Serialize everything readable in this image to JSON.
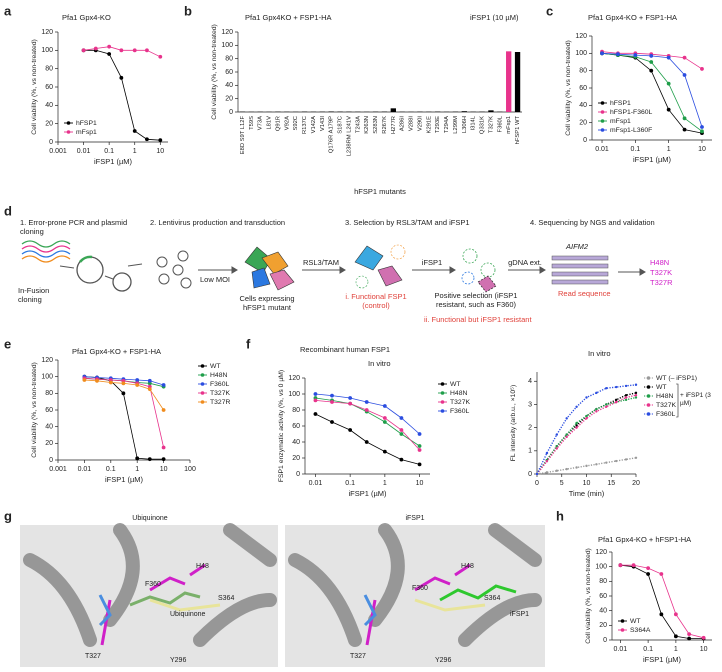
{
  "chart_data": [
    {
      "panel": "a",
      "type": "line",
      "title": "Pfa1 Gpx4-KO",
      "xlabel": "iFSP1 (µM)",
      "ylabel": "Cell viability (%, vs non-treated)",
      "xscale": "log",
      "x": [
        0.01,
        0.03,
        0.1,
        0.3,
        1,
        3,
        10
      ],
      "xlim": [
        0.001,
        20
      ],
      "xticks": [
        0.001,
        0.01,
        0.1,
        1,
        10
      ],
      "ylim": [
        0,
        120
      ],
      "yticks": [
        0,
        20,
        40,
        60,
        80,
        100,
        120
      ],
      "legend": "lower left",
      "series": [
        {
          "name": "hFSP1",
          "color": "#000000",
          "values": [
            100,
            100,
            96,
            70,
            12,
            3,
            2
          ]
        },
        {
          "name": "mFsp1",
          "color": "#e8338c",
          "values": [
            100,
            102,
            104,
            100,
            100,
            100,
            93
          ]
        }
      ]
    },
    {
      "panel": "b",
      "type": "bar",
      "title": "Pfa1 Gpx4KO + FSP1-HA",
      "subtitle": "iFSP1 (10 µM)",
      "xlabel": "hFSP1 mutants",
      "ylabel": "Cell viability (%, vs non-treated)",
      "categories": [
        "E8D S9T L12F",
        "T59S",
        "V73A",
        "L81V",
        "Q91R",
        "V92A",
        "S92C",
        "R137C",
        "V142A",
        "V143I",
        "Q176R A179P",
        "S187C",
        "L238RM L241V",
        "T243A",
        "K263N",
        "S283N",
        "R267K",
        "H277R",
        "A286I",
        "V288I",
        "V290I",
        "K291E",
        "T293E",
        "T294A",
        "L299M",
        "L306H",
        "I314L",
        "Q331K",
        "T327K",
        "F360L",
        "mFsp1",
        "hFSP1 WT"
      ],
      "values": [
        0.5,
        0.3,
        0.4,
        0.3,
        0.5,
        0.4,
        0.3,
        0.6,
        0.4,
        0.5,
        0.8,
        0.6,
        0.5,
        0.4,
        0.3,
        0.5,
        0.6,
        5.5,
        0.4,
        0.3,
        0.5,
        0.4,
        0.6,
        0.3,
        0.5,
        1.2,
        0.4,
        0.5,
        2.5,
        0.4,
        91,
        90
      ],
      "colors": [
        "#000000",
        "#000000",
        "#000000",
        "#000000",
        "#000000",
        "#000000",
        "#000000",
        "#000000",
        "#000000",
        "#000000",
        "#000000",
        "#000000",
        "#000000",
        "#000000",
        "#000000",
        "#000000",
        "#000000",
        "#000000",
        "#000000",
        "#000000",
        "#000000",
        "#000000",
        "#000000",
        "#000000",
        "#000000",
        "#000000",
        "#000000",
        "#000000",
        "#000000",
        "#000000",
        "#e8338c",
        "#000000"
      ],
      "ylim": [
        0,
        120
      ],
      "yticks": [
        0,
        20,
        40,
        60,
        80,
        100,
        120
      ]
    },
    {
      "panel": "c",
      "type": "line",
      "title": "Pfa1 Gpx4-KO + FSP1-HA",
      "xlabel": "iFSP1 (µM)",
      "ylabel": "Cell viability (%, vs non-treated)",
      "xscale": "log",
      "x": [
        0.01,
        0.03,
        0.1,
        0.3,
        1,
        3,
        10
      ],
      "xlim": [
        0.005,
        20
      ],
      "xticks": [
        0.01,
        0.1,
        1,
        10
      ],
      "ylim": [
        0,
        120
      ],
      "yticks": [
        0,
        20,
        40,
        60,
        80,
        100,
        120
      ],
      "legend": "lower left",
      "series": [
        {
          "name": "hFSP1",
          "color": "#000000",
          "values": [
            100,
            98,
            95,
            80,
            35,
            12,
            8
          ]
        },
        {
          "name": "hFSP1-F360L",
          "color": "#e8338c",
          "values": [
            102,
            100,
            100,
            99,
            97,
            95,
            82
          ]
        },
        {
          "name": "mFsp1",
          "color": "#1f9e4a",
          "values": [
            100,
            98,
            96,
            90,
            65,
            25,
            10
          ]
        },
        {
          "name": "mFsp1-L360F",
          "color": "#2b4de0",
          "values": [
            100,
            99,
            98,
            97,
            95,
            75,
            15
          ]
        }
      ]
    },
    {
      "panel": "e",
      "type": "line",
      "title": "Pfa1 Gpx4-KO + FSP1-HA",
      "xlabel": "iFSP1 (µM)",
      "ylabel": "Cell viability (%, vs non-treated)",
      "xscale": "log",
      "x": [
        0.01,
        0.03,
        0.1,
        0.3,
        1,
        3,
        10
      ],
      "xlim": [
        0.001,
        100
      ],
      "xticks": [
        0.001,
        0.01,
        0.1,
        1,
        10,
        100
      ],
      "ylim": [
        0,
        120
      ],
      "yticks": [
        0,
        20,
        40,
        60,
        80,
        100,
        120
      ],
      "legend": "right",
      "series": [
        {
          "name": "WT",
          "color": "#000000",
          "values": [
            100,
            99,
            95,
            80,
            2,
            1,
            1
          ]
        },
        {
          "name": "H48N",
          "color": "#1f9e4a",
          "values": [
            98,
            97,
            96,
            95,
            93,
            92,
            88
          ]
        },
        {
          "name": "F360L",
          "color": "#2b4de0",
          "values": [
            100,
            99,
            98,
            97,
            96,
            95,
            90
          ]
        },
        {
          "name": "T327K",
          "color": "#e8338c",
          "values": [
            98,
            97,
            96,
            95,
            92,
            88,
            15
          ]
        },
        {
          "name": "T327R",
          "color": "#f08c1e",
          "values": [
            96,
            95,
            93,
            92,
            90,
            85,
            60
          ]
        }
      ]
    },
    {
      "panel": "f",
      "type": "line",
      "title": "Recombinant human FSP1",
      "subtitle": "In vitro",
      "xlabel": "iFSP1 (µM)",
      "ylabel": "FSP1 enzymatic activity (%, vs 0 µM)",
      "xscale": "log",
      "x": [
        0.01,
        0.03,
        0.1,
        0.3,
        1,
        3,
        10
      ],
      "xlim": [
        0.005,
        20
      ],
      "xticks": [
        0.01,
        0.1,
        1,
        10
      ],
      "ylim": [
        0,
        120
      ],
      "yticks": [
        0,
        20,
        40,
        60,
        80,
        100,
        120
      ],
      "legend": "right",
      "series": [
        {
          "name": "WT",
          "color": "#000000",
          "values": [
            75,
            65,
            55,
            40,
            28,
            18,
            12
          ]
        },
        {
          "name": "H48N",
          "color": "#1f9e4a",
          "values": [
            95,
            92,
            88,
            78,
            65,
            50,
            35
          ]
        },
        {
          "name": "T327K",
          "color": "#e8338c",
          "values": [
            92,
            90,
            88,
            80,
            70,
            55,
            30
          ]
        },
        {
          "name": "F360L",
          "color": "#2b4de0",
          "values": [
            100,
            98,
            95,
            90,
            85,
            70,
            50
          ]
        }
      ]
    },
    {
      "type": "line",
      "title": "In vitro",
      "xlabel": "Time (min)",
      "ylabel": "FL intensity (arb.u., ×10⁵)",
      "line_style": "dotted",
      "x": [
        0,
        2,
        4,
        6,
        8,
        10,
        12,
        14,
        16,
        18,
        20
      ],
      "xlim": [
        0,
        20
      ],
      "xticks": [
        0,
        5,
        10,
        15,
        20
      ],
      "ylim": [
        0,
        4.4
      ],
      "yticks": [
        0,
        1,
        2,
        3,
        4
      ],
      "legend": "right",
      "legend_note": "+ iFSP1 (3 µM)",
      "series": [
        {
          "name": "WT (– iFSP1)",
          "color": "#999999",
          "values": [
            0,
            0.07,
            0.14,
            0.21,
            0.28,
            0.35,
            0.42,
            0.49,
            0.56,
            0.63,
            0.7
          ]
        },
        {
          "name": "WT",
          "color": "#000000",
          "values": [
            0,
            0.6,
            1.2,
            1.7,
            2.1,
            2.5,
            2.8,
            3.0,
            3.2,
            3.4,
            3.5
          ]
        },
        {
          "name": "H48N",
          "color": "#1f9e4a",
          "values": [
            0,
            0.6,
            1.2,
            1.7,
            2.2,
            2.5,
            2.8,
            3.0,
            3.1,
            3.2,
            3.3
          ]
        },
        {
          "name": "T327K",
          "color": "#e8338c",
          "values": [
            0,
            0.55,
            1.1,
            1.6,
            2.0,
            2.4,
            2.7,
            2.9,
            3.1,
            3.3,
            3.4
          ]
        },
        {
          "name": "F360L",
          "color": "#2b4de0",
          "values": [
            0,
            0.9,
            1.7,
            2.4,
            2.9,
            3.3,
            3.5,
            3.7,
            3.75,
            3.8,
            3.85
          ]
        }
      ]
    },
    {
      "panel": "h",
      "type": "line",
      "title": "Pfa1 Gpx4-KO + hFSP1-HA",
      "xlabel": "iFSP1 (µM)",
      "ylabel": "Cell viability (%, vs non-treated)",
      "xscale": "log",
      "x": [
        0.01,
        0.03,
        0.1,
        0.3,
        1,
        3,
        10
      ],
      "xlim": [
        0.005,
        20
      ],
      "xticks": [
        0.01,
        0.1,
        1,
        10
      ],
      "ylim": [
        0,
        120
      ],
      "yticks": [
        0,
        20,
        40,
        60,
        80,
        100,
        120
      ],
      "legend": "lower left",
      "series": [
        {
          "name": "WT",
          "color": "#000000",
          "values": [
            102,
            100,
            90,
            35,
            5,
            2,
            2
          ]
        },
        {
          "name": "S364A",
          "color": "#e8338c",
          "values": [
            102,
            102,
            98,
            90,
            35,
            8,
            3
          ]
        }
      ]
    }
  ],
  "diagram": {
    "panel": "d",
    "steps": [
      "1. Error-prone PCR and plasmid cloning",
      "2. Lentivirus production and transduction",
      "3. Selection by RSL3/TAM and iFSP1",
      "4. Sequencing by NGS and validation"
    ],
    "labels": [
      "In-Fusion cloning",
      "Low MOI",
      "Cells expressing hFSP1 mutant",
      "RSL3/TAM",
      "i. Functional FSP1 (control)",
      "iFSP1",
      "Positive selection (iFSP1 resistant, such as F360)",
      "ii. Functional but iFSP1 resistant",
      "gDNA ext.",
      "AIFM2",
      "Read sequence"
    ],
    "hits": [
      "H48N",
      "T327K",
      "T327R"
    ]
  },
  "structures": {
    "panel": "g",
    "images": [
      {
        "title": "Ubiquinone",
        "labels": [
          "F360",
          "H48",
          "S364",
          "Ubiquinone",
          "T327",
          "Y296"
        ]
      },
      {
        "title": "iFSP1",
        "labels": [
          "F360",
          "H48",
          "S364",
          "iFSP1",
          "T327",
          "Y296"
        ]
      }
    ]
  }
}
